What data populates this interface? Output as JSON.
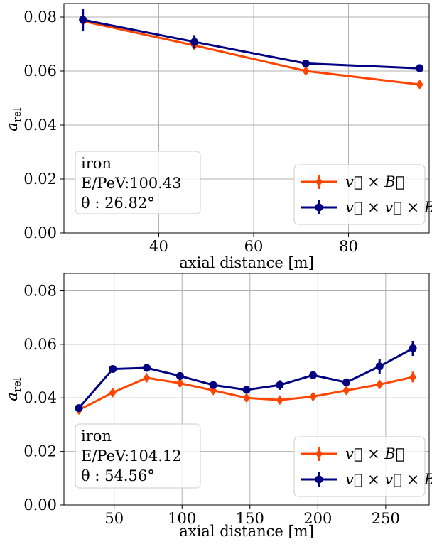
{
  "chart_data": [
    {
      "type": "line",
      "xlabel": "axial distance [m]",
      "ylabel_main": "a",
      "ylabel_sub": "rel",
      "xlim": [
        20,
        97
      ],
      "ylim": [
        0,
        0.085
      ],
      "xticks": [
        "40",
        "60",
        "80"
      ],
      "xtick_values": [
        40,
        60,
        80
      ],
      "yticks": [
        "0.00",
        "0.02",
        "0.04",
        "0.06",
        "0.08"
      ],
      "ytick_values": [
        0,
        0.02,
        0.04,
        0.06,
        0.08
      ],
      "grid": true,
      "legend_position": "lower-right",
      "info": {
        "particle": "iron",
        "energy": "E/PeV:100.43",
        "theta": "θ : 26.82°"
      },
      "series": [
        {
          "name": "v⃗ × B⃗",
          "color": "#ff4500",
          "marker": "diamond",
          "x": [
            24,
            47.5,
            71,
            95
          ],
          "y": [
            0.0785,
            0.0695,
            0.06,
            0.055
          ],
          "err": [
            0.001,
            0.001,
            0.001,
            0.001
          ]
        },
        {
          "name": "v⃗ × v⃗ × B⃗",
          "color": "#000080",
          "marker": "circle",
          "x": [
            24,
            47.5,
            71,
            95
          ],
          "y": [
            0.079,
            0.0708,
            0.0628,
            0.061
          ],
          "err": [
            0.004,
            0.0025,
            0.0012,
            0.0015
          ]
        }
      ]
    },
    {
      "type": "line",
      "xlabel": "axial distance [m]",
      "ylabel_main": "a",
      "ylabel_sub": "rel",
      "xlim": [
        13,
        282
      ],
      "ylim": [
        0,
        0.0865
      ],
      "xticks": [
        "50",
        "100",
        "150",
        "200",
        "250"
      ],
      "xtick_values": [
        50,
        100,
        150,
        200,
        250
      ],
      "yticks": [
        "0.00",
        "0.02",
        "0.04",
        "0.06",
        "0.08"
      ],
      "ytick_values": [
        0,
        0.02,
        0.04,
        0.06,
        0.08
      ],
      "grid": true,
      "legend_position": "lower-right",
      "info": {
        "particle": "iron",
        "energy": "E/PeV:104.12",
        "theta": "θ : 54.56°"
      },
      "series": [
        {
          "name": "v⃗ × B⃗",
          "color": "#ff4500",
          "marker": "diamond",
          "x": [
            24,
            49,
            74,
            98.5,
            123,
            147.5,
            172,
            196.5,
            221,
            245.5,
            270
          ],
          "y": [
            0.0355,
            0.042,
            0.0475,
            0.0455,
            0.0428,
            0.04,
            0.0392,
            0.0405,
            0.0428,
            0.045,
            0.0478
          ],
          "err": [
            0.001,
            0.001,
            0.001,
            0.001,
            0.001,
            0.001,
            0.001,
            0.001,
            0.001,
            0.001,
            0.002
          ]
        },
        {
          "name": "v⃗ × v⃗ × B⃗",
          "color": "#000080",
          "marker": "circle",
          "x": [
            24,
            49,
            74,
            98.5,
            123,
            147.5,
            172,
            196.5,
            221,
            245.5,
            270
          ],
          "y": [
            0.0362,
            0.0508,
            0.0512,
            0.0482,
            0.0448,
            0.043,
            0.0448,
            0.0485,
            0.0458,
            0.0518,
            0.0585
          ],
          "err": [
            0.0008,
            0.0008,
            0.0008,
            0.0008,
            0.0008,
            0.0008,
            0.0018,
            0.0008,
            0.0008,
            0.0028,
            0.0028
          ]
        }
      ]
    }
  ]
}
